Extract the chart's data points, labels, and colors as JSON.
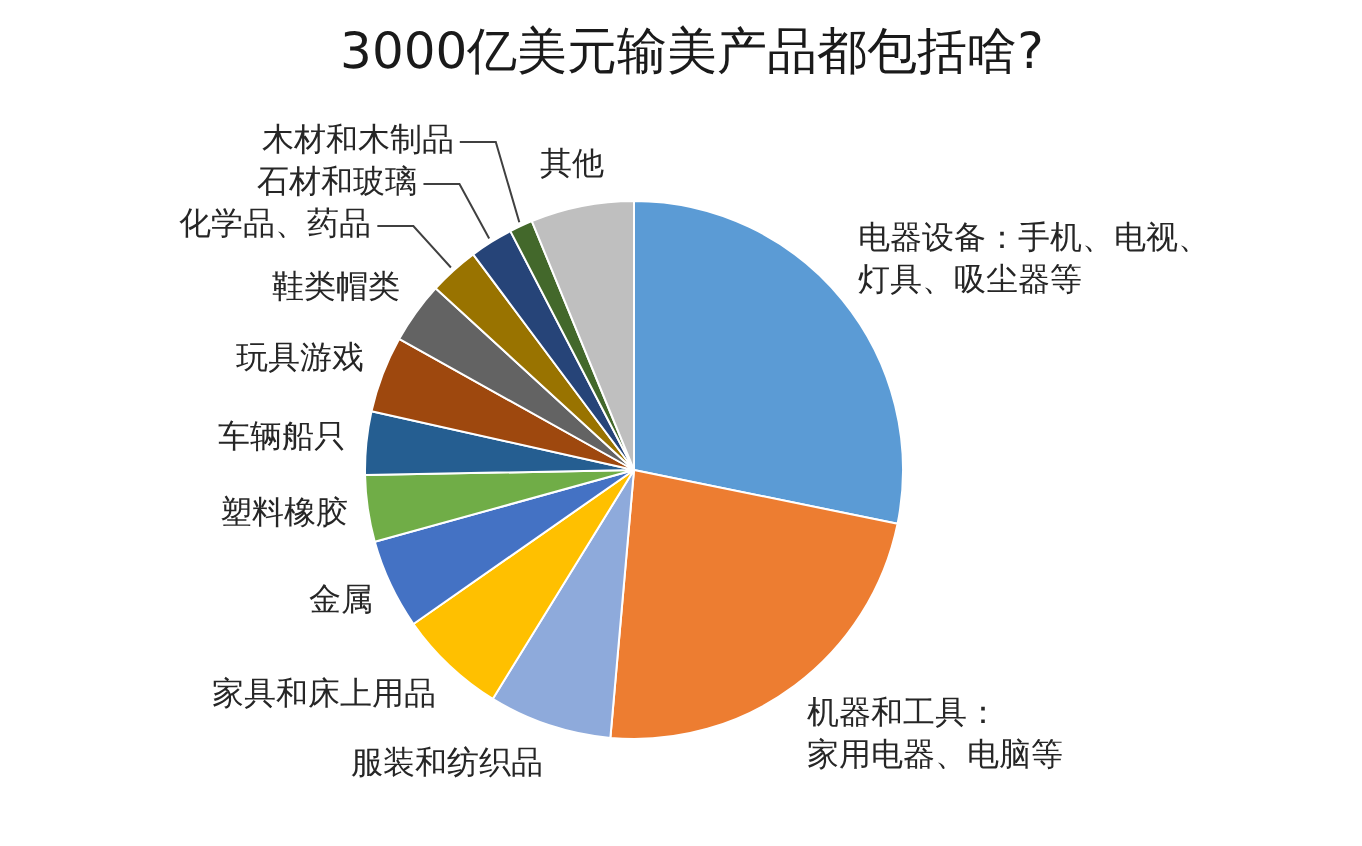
{
  "chart_data": {
    "type": "pie",
    "title": "3000亿美元输美产品都包括啥?",
    "categories": [
      "电器设备：手机、电视、灯具、吸尘器等",
      "机器和工具：家用电器、电脑等",
      "服装和纺织品",
      "家具和床上用品",
      "金属",
      "塑料橡胶",
      "车辆船只",
      "玩具游戏",
      "鞋类帽类",
      "化学品、药品",
      "石材和玻璃",
      "木材和木制品",
      "其他"
    ],
    "values": [
      28.2,
      23.2,
      7.4,
      6.5,
      5.4,
      4.0,
      3.8,
      4.6,
      3.7,
      3.0,
      2.6,
      1.4,
      6.2
    ],
    "colors": [
      "#5b9bd5",
      "#ed7d31",
      "#8eaadb",
      "#ffc000",
      "#4472c4",
      "#70ad47",
      "#255e91",
      "#9e480e",
      "#636363",
      "#997300",
      "#264478",
      "#43682b",
      "#bfbfbf"
    ],
    "legend": false
  }
}
